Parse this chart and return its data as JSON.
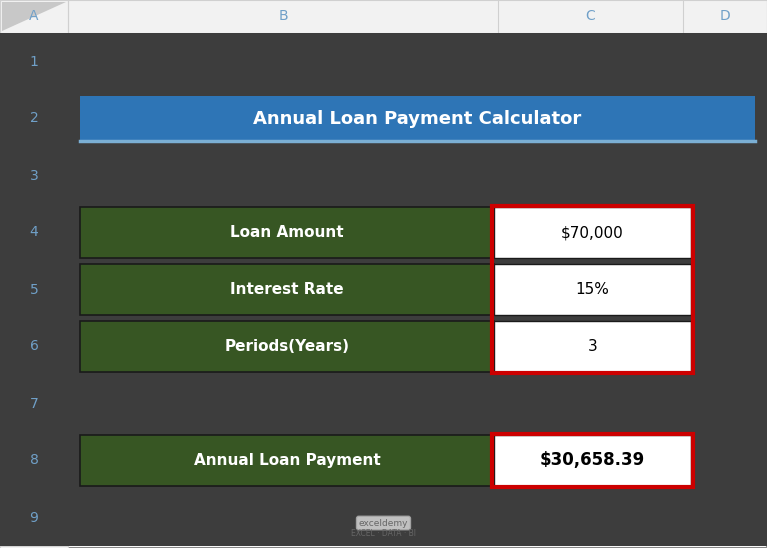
{
  "bg_color": "#3d3d3d",
  "outer_bg": "#ffffff",
  "title": "Annual Loan Payment Calculator",
  "title_bg": "#2e75b6",
  "title_underline": "#7bafd4",
  "title_text_color": "#ffffff",
  "green_bg": "#375623",
  "white_bg": "#ffffff",
  "black_text": "#000000",
  "white_text": "#ffffff",
  "red_border": "#cc0000",
  "black_border": "#1a1a1a",
  "gray_header_bg": "#f2f2f2",
  "gray_border": "#d0d0d0",
  "col_header_text": "#70a0c8",
  "row_header_text": "#70a0c8",
  "header_row": [
    "Loan Amount",
    "Interest Rate",
    "Periods(Years)"
  ],
  "header_values": [
    "$70,000",
    "15%",
    "3"
  ],
  "result_label": "Annual Loan Payment",
  "result_value": "$30,658.39",
  "col_headers": [
    "A",
    "B",
    "C",
    "D"
  ],
  "row_headers": [
    "1",
    "2",
    "3",
    "4",
    "5",
    "6",
    "7",
    "8",
    "9"
  ],
  "watermark_line1": "exceldemy",
  "watermark_line2": "EXCEL · DATA · BI",
  "fig_width": 7.67,
  "fig_height": 5.48,
  "dpi": 100,
  "corner_tri_color": "#c8c8c8",
  "outer_border_color": "#888888"
}
